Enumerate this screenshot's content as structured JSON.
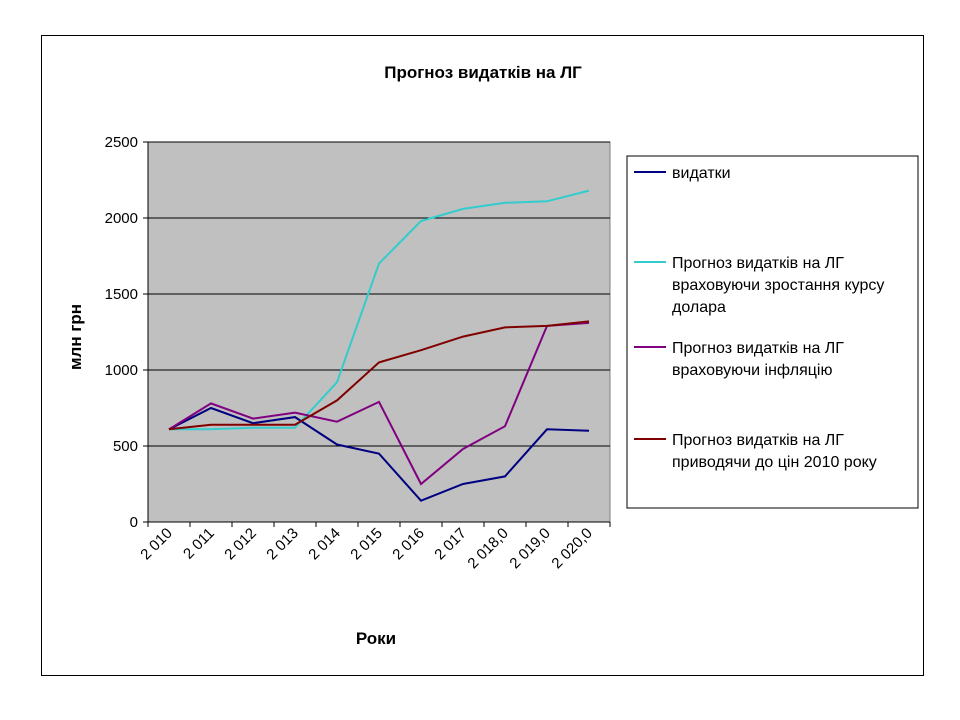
{
  "chart_data": {
    "type": "line",
    "title": "Прогноз видатків на ЛГ",
    "xlabel": "Роки",
    "ylabel": "млн грн",
    "categories": [
      "2 010",
      "2 011",
      "2 012",
      "2 013",
      "2 014",
      "2 015",
      "2 016",
      "2 017",
      "2 018,0",
      "2 019,0",
      "2 020,0"
    ],
    "yticks": [
      "0",
      "500",
      "1000",
      "1500",
      "2000",
      "2500"
    ],
    "ylim": [
      0,
      2500
    ],
    "grid": true,
    "legend_position": "right",
    "plot_background": "#c0c0c0",
    "series": [
      {
        "name": "видатки",
        "color": "#000080",
        "values": [
          610,
          750,
          650,
          690,
          510,
          450,
          140,
          250,
          300,
          610,
          600
        ]
      },
      {
        "name": "Прогноз видатків на ЛГ враховуючи зростання курсу долара",
        "color": "#33cccc",
        "values": [
          610,
          610,
          620,
          620,
          920,
          1700,
          1980,
          2060,
          2100,
          2110,
          2180
        ]
      },
      {
        "name": "Прогноз видатків на ЛГ враховуючи інфляцію",
        "color": "#800080",
        "values": [
          610,
          780,
          680,
          720,
          660,
          790,
          250,
          480,
          630,
          1290,
          1310
        ]
      },
      {
        "name": "Прогноз видатків на ЛГ приводячи до цін 2010 року",
        "color": "#800000",
        "values": [
          610,
          640,
          640,
          640,
          800,
          1050,
          1130,
          1220,
          1280,
          1290,
          1320
        ]
      }
    ]
  }
}
